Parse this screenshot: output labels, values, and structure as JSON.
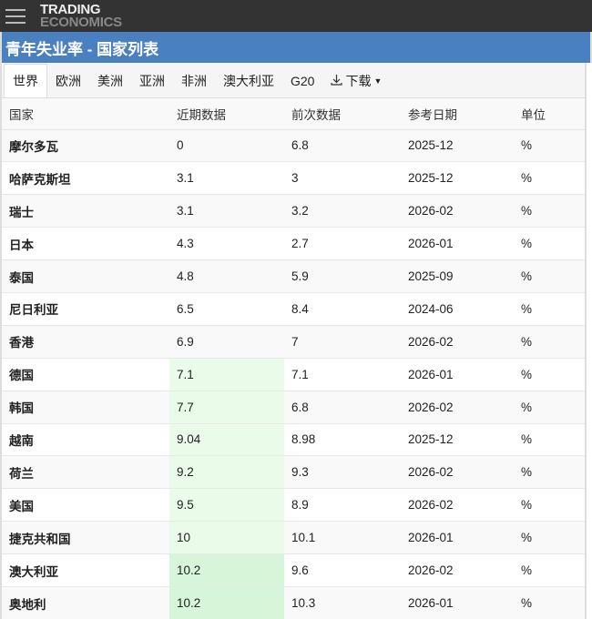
{
  "header": {
    "logo_line1": "TRADING",
    "logo_line2": "ECONOMICS"
  },
  "title": "青年失业率 - 国家列表",
  "tabs": [
    {
      "label": "世界",
      "active": true
    },
    {
      "label": "欧洲"
    },
    {
      "label": "美洲"
    },
    {
      "label": "亚洲"
    },
    {
      "label": "非洲"
    },
    {
      "label": "澳大利亚"
    },
    {
      "label": "G20"
    }
  ],
  "download_label": "下载",
  "columns": [
    "国家",
    "近期数据",
    "前次数据",
    "参考日期",
    "单位"
  ],
  "heat_colors": {
    "none": "",
    "light": "#eafbea",
    "strong": "#d7f5d9"
  },
  "rows": [
    {
      "country": "摩尔多瓦",
      "latest": "0",
      "previous": "6.8",
      "date": "2025-12",
      "unit": "%",
      "heat": "none"
    },
    {
      "country": "哈萨克斯坦",
      "latest": "3.1",
      "previous": "3",
      "date": "2025-12",
      "unit": "%",
      "heat": "none"
    },
    {
      "country": "瑞士",
      "latest": "3.1",
      "previous": "3.2",
      "date": "2026-02",
      "unit": "%",
      "heat": "none"
    },
    {
      "country": "日本",
      "latest": "4.3",
      "previous": "2.7",
      "date": "2026-01",
      "unit": "%",
      "heat": "none"
    },
    {
      "country": "泰国",
      "latest": "4.8",
      "previous": "5.9",
      "date": "2025-09",
      "unit": "%",
      "heat": "none"
    },
    {
      "country": "尼日利亚",
      "latest": "6.5",
      "previous": "8.4",
      "date": "2024-06",
      "unit": "%",
      "heat": "none"
    },
    {
      "country": "香港",
      "latest": "6.9",
      "previous": "7",
      "date": "2026-02",
      "unit": "%",
      "heat": "none"
    },
    {
      "country": "德国",
      "latest": "7.1",
      "previous": "7.1",
      "date": "2026-01",
      "unit": "%",
      "heat": "light"
    },
    {
      "country": "韩国",
      "latest": "7.7",
      "previous": "6.8",
      "date": "2026-02",
      "unit": "%",
      "heat": "light"
    },
    {
      "country": "越南",
      "latest": "9.04",
      "previous": "8.98",
      "date": "2025-12",
      "unit": "%",
      "heat": "light"
    },
    {
      "country": "荷兰",
      "latest": "9.2",
      "previous": "9.3",
      "date": "2026-02",
      "unit": "%",
      "heat": "light"
    },
    {
      "country": "美国",
      "latest": "9.5",
      "previous": "8.9",
      "date": "2026-02",
      "unit": "%",
      "heat": "light"
    },
    {
      "country": "捷克共和国",
      "latest": "10",
      "previous": "10.1",
      "date": "2026-01",
      "unit": "%",
      "heat": "light"
    },
    {
      "country": "澳大利亚",
      "latest": "10.2",
      "previous": "9.6",
      "date": "2026-02",
      "unit": "%",
      "heat": "strong"
    },
    {
      "country": "奥地利",
      "latest": "10.2",
      "previous": "10.3",
      "date": "2026-01",
      "unit": "%",
      "heat": "strong"
    }
  ]
}
